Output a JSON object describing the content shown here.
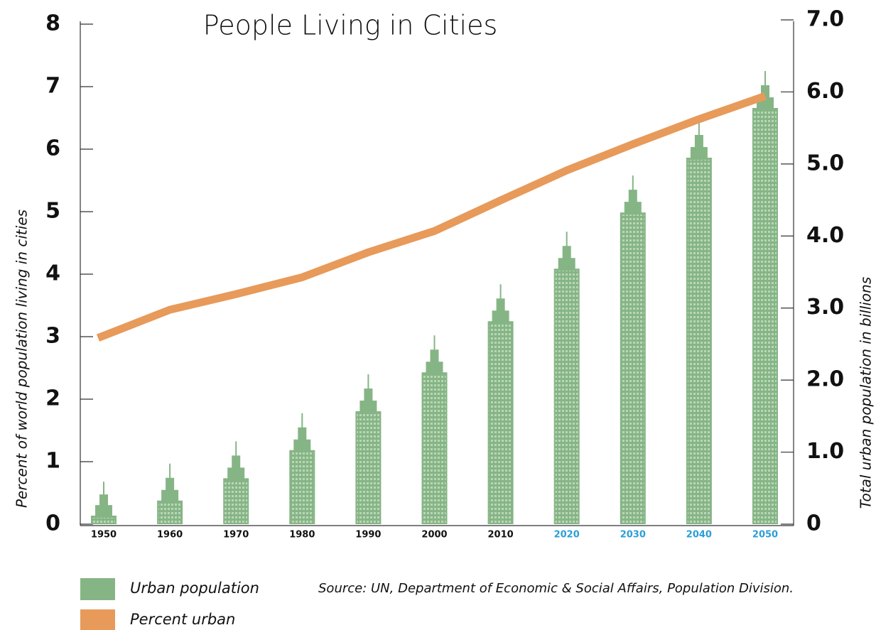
{
  "chart_data": {
    "type": "bar-line",
    "title": "People Living in Cities",
    "ylabel": "Percent of world population living in cities",
    "y2label": "Total urban population in billions",
    "source": "Source: UN, Department of Economic & Social Affairs, Population Division.",
    "categories": [
      "1950",
      "1960",
      "1970",
      "1980",
      "1990",
      "2000",
      "2010",
      "2020",
      "2030",
      "2040",
      "2050"
    ],
    "category_colors": [
      "#111111",
      "#111111",
      "#111111",
      "#111111",
      "#111111",
      "#111111",
      "#111111",
      "#2a9fd6",
      "#2a9fd6",
      "#2a9fd6",
      "#2a9fd6"
    ],
    "series": [
      {
        "name": "Urban population",
        "type": "bar",
        "axis": "y2",
        "color": "#86b585",
        "values": [
          0.59,
          0.84,
          1.15,
          1.54,
          2.08,
          2.62,
          3.33,
          4.06,
          4.84,
          5.6,
          6.29
        ]
      },
      {
        "name": "Percent urban",
        "type": "line",
        "axis": "y",
        "color": "#e79a5a",
        "values": [
          2.98,
          3.43,
          3.68,
          3.95,
          4.35,
          4.69,
          5.18,
          5.66,
          6.08,
          6.48,
          6.85
        ]
      }
    ],
    "ylim": [
      0,
      8
    ],
    "yticks": [
      0,
      1,
      2,
      3,
      4,
      5,
      6,
      7,
      8
    ],
    "y2lim": [
      0,
      7
    ],
    "y2ticks": [
      0,
      {
        "value": 1,
        "label": "1.0"
      },
      {
        "value": 2,
        "label": "2.0"
      },
      {
        "value": 3,
        "label": "3.0"
      },
      {
        "value": 4,
        "label": "4.0"
      },
      {
        "value": 5,
        "label": "5.0"
      },
      {
        "value": 6,
        "label": "6.0"
      },
      {
        "value": 7,
        "label": "7.0"
      }
    ]
  }
}
